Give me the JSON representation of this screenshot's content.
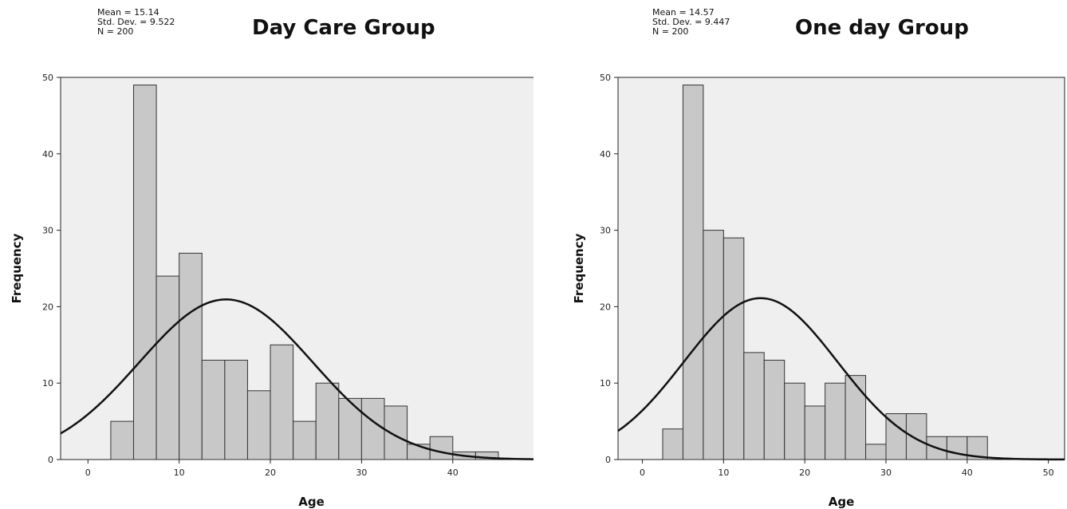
{
  "chart_data": [
    {
      "type": "bar",
      "title": "Day Care Group",
      "stats": {
        "mean": "Mean = 15.14",
        "sd": "Std. Dev. = 9.522",
        "n": "N = 200"
      },
      "xlabel": "Age",
      "ylabel": "Frequency",
      "xlim": [
        -3,
        52
      ],
      "ylim": [
        0,
        50
      ],
      "xticks": [
        0,
        10,
        20,
        30,
        40,
        50
      ],
      "yticks": [
        0,
        10,
        20,
        30,
        40,
        50
      ],
      "bin_width": 2.5,
      "bins": [
        {
          "x0": 2.5,
          "value": 5
        },
        {
          "x0": 5,
          "value": 49
        },
        {
          "x0": 7.5,
          "value": 24
        },
        {
          "x0": 10,
          "value": 27
        },
        {
          "x0": 12.5,
          "value": 13
        },
        {
          "x0": 15,
          "value": 13
        },
        {
          "x0": 17.5,
          "value": 9
        },
        {
          "x0": 20,
          "value": 15
        },
        {
          "x0": 22.5,
          "value": 5
        },
        {
          "x0": 25,
          "value": 10
        },
        {
          "x0": 27.5,
          "value": 8
        },
        {
          "x0": 30,
          "value": 8
        },
        {
          "x0": 32.5,
          "value": 7
        },
        {
          "x0": 35,
          "value": 2
        },
        {
          "x0": 37.5,
          "value": 3
        },
        {
          "x0": 40,
          "value": 1
        },
        {
          "x0": 42.5,
          "value": 1
        }
      ],
      "normal_curve": {
        "mean": 15.14,
        "sd": 9.522,
        "n": 200
      }
    },
    {
      "type": "bar",
      "title": "One day Group",
      "stats": {
        "mean": "Mean = 14.57",
        "sd": "Std. Dev. = 9.447",
        "n": "N = 200"
      },
      "xlabel": "Age",
      "ylabel": "Frequency",
      "xlim": [
        -3,
        52
      ],
      "ylim": [
        0,
        50
      ],
      "xticks": [
        0,
        10,
        20,
        30,
        40,
        50
      ],
      "yticks": [
        0,
        10,
        20,
        30,
        40,
        50
      ],
      "bin_width": 2.5,
      "bins": [
        {
          "x0": 2.5,
          "value": 4
        },
        {
          "x0": 5,
          "value": 49
        },
        {
          "x0": 7.5,
          "value": 30
        },
        {
          "x0": 10,
          "value": 29
        },
        {
          "x0": 12.5,
          "value": 14
        },
        {
          "x0": 15,
          "value": 13
        },
        {
          "x0": 17.5,
          "value": 10
        },
        {
          "x0": 20,
          "value": 7
        },
        {
          "x0": 22.5,
          "value": 10
        },
        {
          "x0": 25,
          "value": 11
        },
        {
          "x0": 27.5,
          "value": 2
        },
        {
          "x0": 30,
          "value": 6
        },
        {
          "x0": 32.5,
          "value": 6
        },
        {
          "x0": 35,
          "value": 3
        },
        {
          "x0": 37.5,
          "value": 3
        },
        {
          "x0": 40,
          "value": 3
        }
      ],
      "normal_curve": {
        "mean": 14.57,
        "sd": 9.447,
        "n": 200
      }
    }
  ],
  "colors": {
    "plot_bg": "#efefef",
    "bar_fill": "#c8c8c8",
    "bar_stroke": "#333333",
    "curve": "#111111"
  }
}
